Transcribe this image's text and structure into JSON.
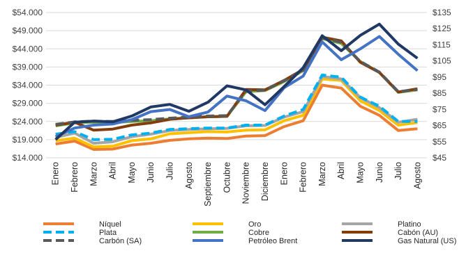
{
  "chart_data": {
    "type": "line",
    "title": "",
    "xlabel": "",
    "ylabel": "",
    "categories": [
      "Enero",
      "Febrero",
      "Marzo",
      "Abril",
      "Mayo",
      "Junio",
      "Julio",
      "Agosto",
      "Septiembre",
      "Octubre",
      "Noviembre",
      "Diciembre",
      "Enero",
      "Febrero",
      "Marzo",
      "Abril",
      "Mayo",
      "Junio",
      "Julio",
      "Agosto"
    ],
    "left_axis": {
      "ticks": [
        "$14.000",
        "$19.000",
        "$24.000",
        "$29.000",
        "$34.000",
        "$39.000",
        "$44.000",
        "$49.000",
        "$54.000"
      ],
      "ylim": [
        14000,
        54000
      ]
    },
    "right_axis": {
      "ticks": [
        "$45",
        "$55",
        "$65",
        "$75",
        "$85",
        "$95",
        "$105",
        "$115",
        "$125",
        "$135"
      ],
      "ylim": [
        45,
        135
      ]
    },
    "grid": true,
    "legend_position": "bottom",
    "series": [
      {
        "name": "Níquel",
        "axis": "left",
        "color": "#ed7d31",
        "dash": "solid",
        "values": [
          17800,
          18600,
          16300,
          16400,
          17500,
          18000,
          18800,
          19200,
          19400,
          19300,
          20000,
          20100,
          22600,
          24200,
          34000,
          33200,
          28200,
          25700,
          21500,
          22000
        ]
      },
      {
        "name": "Oro",
        "axis": "left",
        "color": "#ffc000",
        "dash": "solid",
        "values": [
          18700,
          19400,
          17000,
          17200,
          18700,
          19200,
          20600,
          20900,
          21200,
          21100,
          21600,
          21700,
          24200,
          25700,
          35700,
          35300,
          29700,
          27000,
          23000,
          23700
        ]
      },
      {
        "name": "Platino",
        "axis": "left",
        "color": "#a5a5a5",
        "dash": "solid",
        "values": [
          19600,
          20800,
          18000,
          18400,
          19800,
          20500,
          21500,
          21800,
          22000,
          22100,
          22800,
          22900,
          25200,
          26700,
          36400,
          35700,
          30600,
          27800,
          23800,
          24600
        ]
      },
      {
        "name": "Plata",
        "axis": "left",
        "color": "#00b0f0",
        "dash": "dash",
        "values": [
          20500,
          21200,
          19000,
          19100,
          20300,
          20800,
          21800,
          22000,
          22200,
          22200,
          23000,
          23000,
          25500,
          27300,
          36800,
          36200,
          30700,
          28200,
          24000,
          24000
        ]
      },
      {
        "name": "Cobre",
        "axis": "left",
        "color": "#70ad47",
        "dash": "solid",
        "values": [
          22800,
          23600,
          23800,
          23700,
          24000,
          24200,
          24700,
          25000,
          25300,
          25400,
          32200,
          32500,
          35000,
          38000,
          46800,
          45500,
          40500,
          37500,
          32000,
          32700
        ]
      },
      {
        "name": "Cabón (AU)",
        "axis": "left",
        "color": "#843c0c",
        "dash": "solid",
        "values": [
          23000,
          23800,
          21600,
          21900,
          23000,
          23600,
          24600,
          25000,
          25300,
          25400,
          32800,
          32700,
          35300,
          38300,
          47200,
          46200,
          40300,
          37500,
          32100,
          33000
        ]
      },
      {
        "name": "Carbón (SA)",
        "axis": "left",
        "color": "#595959",
        "dash": "dash",
        "values": [
          23200,
          23900,
          24100,
          24000,
          24300,
          24500,
          24900,
          25200,
          25500,
          25600,
          32400,
          32600,
          35200,
          38100,
          47000,
          45800,
          40500,
          37600,
          32200,
          32800
        ]
      },
      {
        "name": "Petróleo Brent",
        "axis": "left",
        "color": "#4472c4",
        "dash": "solid",
        "values": [
          19800,
          22200,
          23000,
          23300,
          24500,
          26700,
          27300,
          25300,
          26600,
          31000,
          29700,
          27000,
          33300,
          36500,
          45900,
          41000,
          44000,
          47400,
          42500,
          38000
        ]
      },
      {
        "name": "Gas Natural (US)",
        "axis": "left",
        "color": "#203864",
        "dash": "solid",
        "values": [
          19000,
          23800,
          24100,
          23900,
          25500,
          28000,
          28700,
          26800,
          29300,
          33800,
          32700,
          28600,
          33600,
          38800,
          47600,
          43500,
          47700,
          50800,
          45300,
          41400
        ]
      }
    ]
  }
}
